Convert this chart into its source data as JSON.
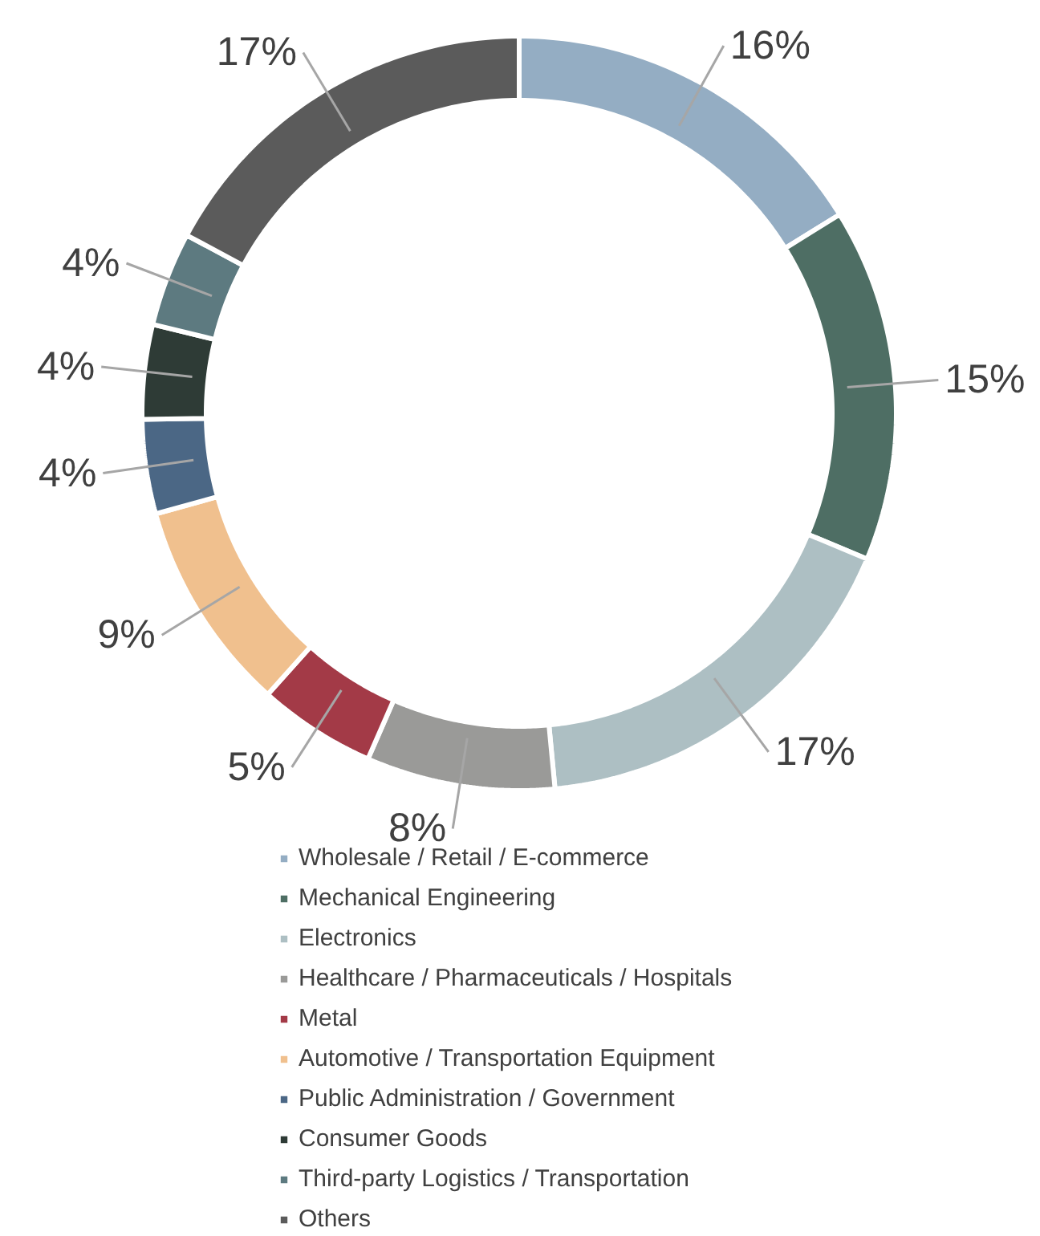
{
  "chart_data": {
    "type": "donut",
    "categories": [
      "Wholesale / Retail / E-commerce",
      "Mechanical Engineering",
      "Electronics",
      "Healthcare / Pharmaceuticals / Hospitals",
      "Metal",
      "Automotive / Transportation Equipment",
      "Public Administration / Government",
      "Consumer Goods",
      "Third-party Logistics / Transportation",
      "Others"
    ],
    "values": [
      16,
      15,
      17,
      8,
      5,
      9,
      4,
      4,
      4,
      17
    ],
    "value_labels": [
      "16%",
      "15%",
      "17%",
      "8%",
      "5%",
      "9%",
      "4%",
      "4%",
      "4%",
      "17%"
    ],
    "colors": [
      "#94adc3",
      "#4e6e64",
      "#adbfc3",
      "#9a9a98",
      "#a33a47",
      "#f0c08e",
      "#4b6785",
      "#2e3b36",
      "#5d7a80",
      "#5b5b5b"
    ],
    "legend": "bottom"
  }
}
